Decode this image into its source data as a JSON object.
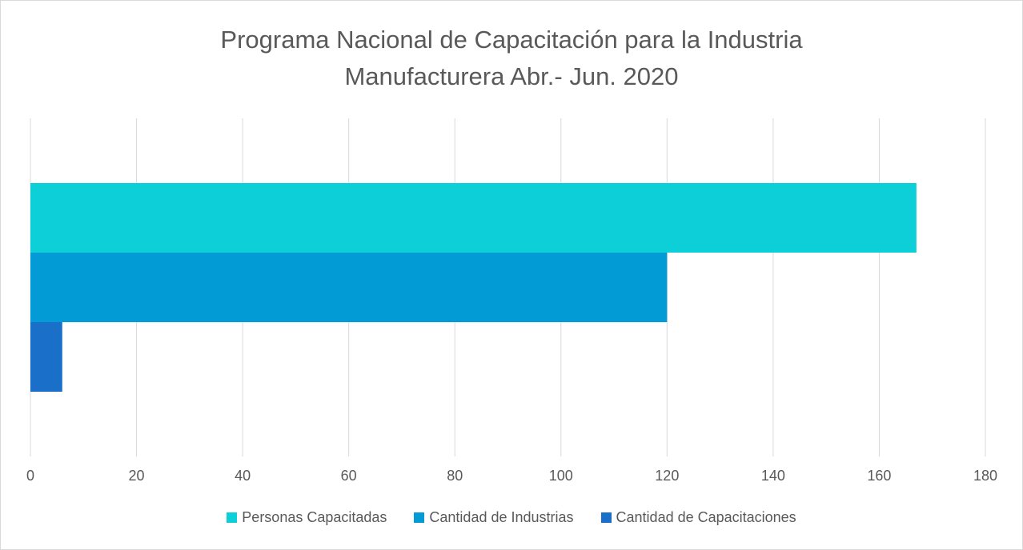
{
  "chart_data": {
    "type": "hbar",
    "title": "Programa Nacional de Capacitación para la Industria Manufacturera Abr.- Jun. 2020",
    "categories": [
      null
    ],
    "series": [
      {
        "name": "Personas Capacitadas",
        "color": "#0ccfd8",
        "values": [
          167
        ]
      },
      {
        "name": "Cantidad de Industrias",
        "color": "#039bd6",
        "values": [
          120
        ]
      },
      {
        "name": "Cantidad de Capacitaciones",
        "color": "#1a6fc9",
        "values": [
          6
        ]
      }
    ],
    "xlim": [
      0,
      180
    ],
    "xticks": [
      0,
      20,
      40,
      60,
      80,
      100,
      120,
      140,
      160,
      180
    ],
    "grid": true,
    "legend": "bottom"
  }
}
